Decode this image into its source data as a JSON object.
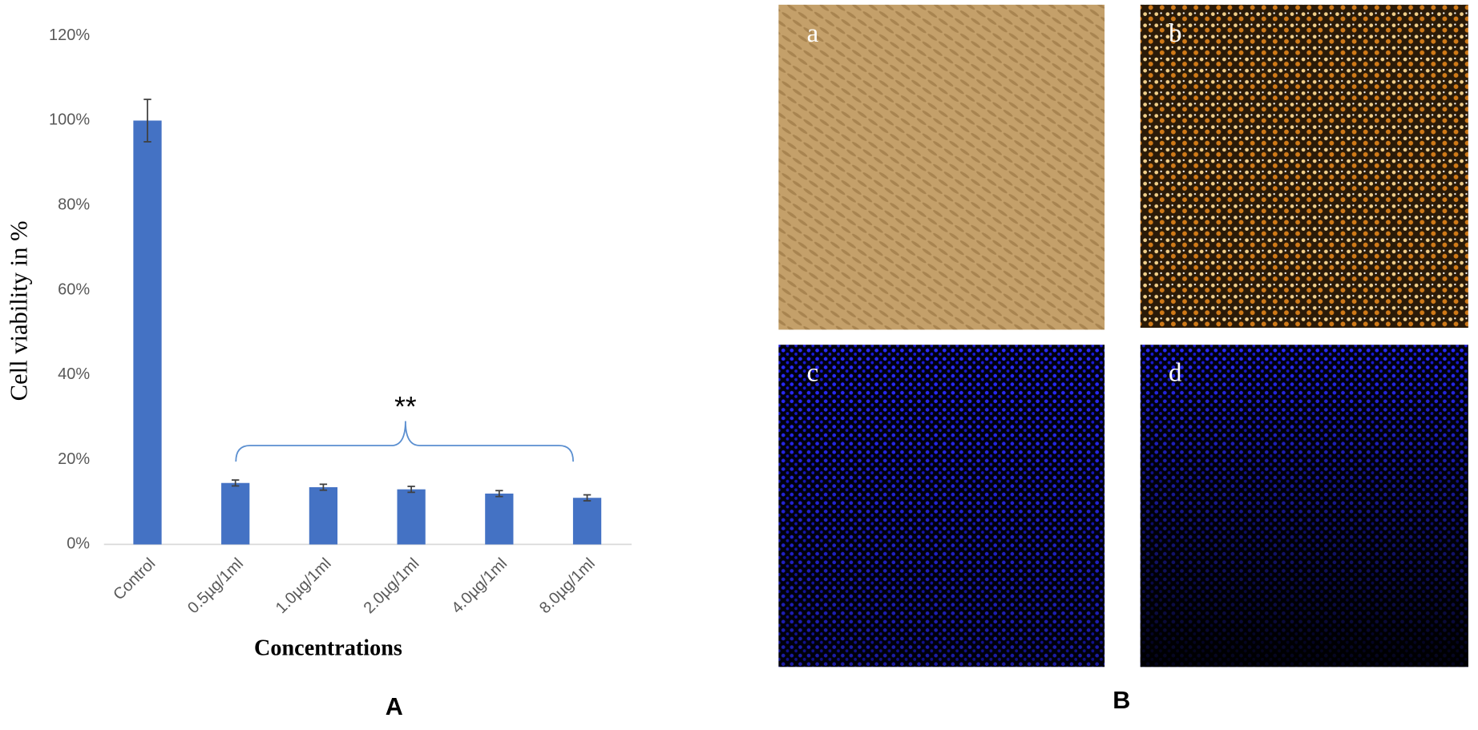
{
  "chart_data": {
    "type": "bar",
    "categories": [
      "Control",
      "0.5µg/1ml",
      "1.0µg/1ml",
      "2.0µg/1ml",
      "4.0µg/1ml",
      "8.0µg/1ml"
    ],
    "values": [
      100,
      14.5,
      13.5,
      13,
      12,
      11
    ],
    "errors": [
      5,
      0.7,
      0.7,
      0.7,
      0.7,
      0.7
    ],
    "color": "#4472c4",
    "ylim": [
      0,
      120
    ],
    "yticks": [
      {
        "value": 0,
        "label": "0%"
      },
      {
        "value": 20,
        "label": "20%"
      },
      {
        "value": 40,
        "label": "40%"
      },
      {
        "value": 60,
        "label": "60%"
      },
      {
        "value": 80,
        "label": "80%"
      },
      {
        "value": 100,
        "label": "100%"
      },
      {
        "value": 120,
        "label": "120%"
      }
    ],
    "ylabel": "Cell viability in %",
    "xlabel": "Concentrations",
    "annotation": "**",
    "panel_label": "A"
  },
  "panel_b": {
    "label": "B",
    "images": [
      "a",
      "b",
      "c",
      "d"
    ]
  }
}
